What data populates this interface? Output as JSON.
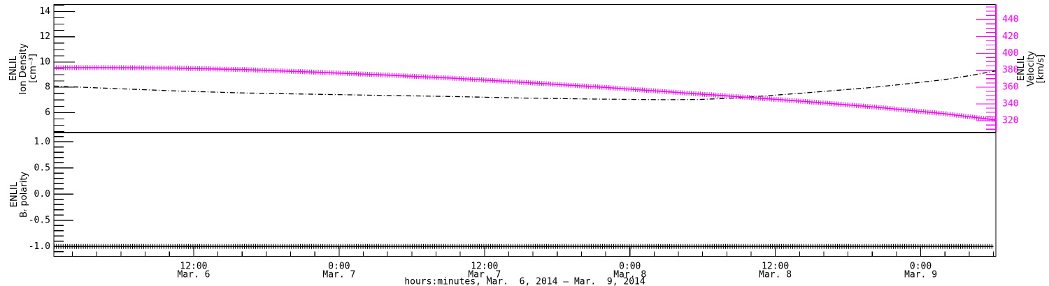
{
  "meta": {
    "background": "#ffffff",
    "frame_color": "#000000",
    "accent_magenta": "#ff00ff"
  },
  "chart_data": {
    "type": "line",
    "title": "",
    "grid": "off",
    "x": {
      "label": "hours:minutes, Mar.  6, 2014 – Mar.  9, 2014",
      "range_hours": [
        0.46,
        78.2
      ],
      "minor_step_hours": 2,
      "major_step_hours": 12,
      "major_ticks": [
        {
          "hours": 12,
          "time": "12:00",
          "date": "Mar. 6"
        },
        {
          "hours": 24,
          "time": "0:00",
          "date": "Mar. 7"
        },
        {
          "hours": 36,
          "time": "12:00",
          "date": "Mar. 7"
        },
        {
          "hours": 48,
          "time": "0:00",
          "date": "Mar. 8"
        },
        {
          "hours": 60,
          "time": "12:00",
          "date": "Mar. 8"
        },
        {
          "hours": 72,
          "time": "0:00",
          "date": "Mar. 9"
        }
      ]
    },
    "panels": [
      {
        "name": "density-velocity",
        "left_axis": {
          "title_lines": [
            "ENLIL",
            "Ion Density",
            "[cm⁻³]"
          ],
          "range": [
            4.45,
            14.55
          ],
          "tick_values": [
            6,
            8,
            10,
            12,
            14
          ],
          "tick_labels": [
            "6",
            "8",
            "10",
            "12",
            "14"
          ],
          "minor_step": 0.5,
          "color": "#000000"
        },
        "right_axis": {
          "title_lines": [
            "ENLIL",
            "Velocity",
            "[km/s]"
          ],
          "range": [
            306.5,
            458
          ],
          "tick_values": [
            320,
            340,
            360,
            380,
            400,
            420,
            440
          ],
          "tick_labels": [
            "320",
            "340",
            "360",
            "380",
            "400",
            "420",
            "440"
          ],
          "minor_step": 5,
          "color": "#ff00ff",
          "title_color": "#000000"
        },
        "series": [
          {
            "name": "ion-density",
            "axis": "left",
            "color": "#000000",
            "line_style": "dash-dot",
            "points": [
              [
                0.46,
                8.1
              ],
              [
                4.7,
                7.93
              ],
              [
                10.4,
                7.72
              ],
              [
                16.2,
                7.55
              ],
              [
                22,
                7.45
              ],
              [
                27.7,
                7.36
              ],
              [
                33.5,
                7.27
              ],
              [
                39.3,
                7.15
              ],
              [
                45.1,
                7.07
              ],
              [
                50.8,
                7.02
              ],
              [
                53.7,
                7.04
              ],
              [
                56.6,
                7.15
              ],
              [
                59.5,
                7.35
              ],
              [
                62.4,
                7.55
              ],
              [
                65.3,
                7.78
              ],
              [
                68.1,
                8.0
              ],
              [
                71.1,
                8.3
              ],
              [
                73.9,
                8.6
              ],
              [
                76.2,
                8.95
              ],
              [
                78.2,
                9.3
              ]
            ]
          },
          {
            "name": "velocity",
            "axis": "right",
            "color": "#ff00ff",
            "line_style": "plus-hatch",
            "points": [
              [
                0.46,
                383
              ],
              [
                4.7,
                383.2
              ],
              [
                10.4,
                382.6
              ],
              [
                16.2,
                380.8
              ],
              [
                22,
                377.8
              ],
              [
                27.7,
                374.5
              ],
              [
                33.5,
                370.5
              ],
              [
                39.3,
                365.5
              ],
              [
                45.1,
                360.5
              ],
              [
                50.8,
                354.8
              ],
              [
                56.6,
                349
              ],
              [
                62.4,
                343
              ],
              [
                68.1,
                336.5
              ],
              [
                73.9,
                328.5
              ],
              [
                78.2,
                321
              ]
            ]
          }
        ]
      },
      {
        "name": "br-polarity",
        "left_axis": {
          "title_lines": [
            "ENLIL",
            "Bᵣ polarity"
          ],
          "range": [
            -1.19,
            1.17
          ],
          "tick_values": [
            -1.0,
            -0.5,
            0.0,
            0.5,
            1.0
          ],
          "tick_labels": [
            "-1.0",
            "-0.5",
            "0.0",
            "0.5",
            "1.0"
          ],
          "minor_step": 0.1,
          "color": "#000000"
        },
        "series": [
          {
            "name": "br-polarity",
            "axis": "left",
            "color": "#000000",
            "line_style": "plus-hatch",
            "points": [
              [
                0.46,
                -1.0
              ],
              [
                78.0,
                -1.0
              ]
            ]
          }
        ]
      }
    ]
  }
}
